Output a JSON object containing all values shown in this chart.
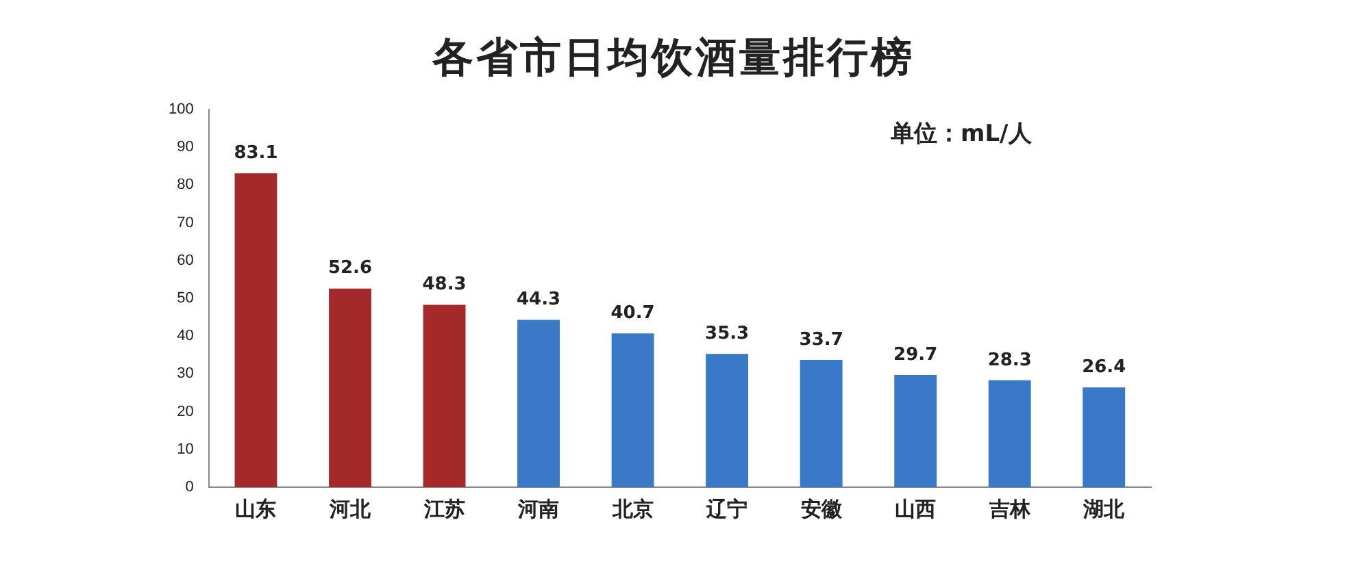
{
  "chart_data": {
    "type": "bar",
    "title": "各省市日均饮酒量排行榜",
    "annotations": [
      "单位：mL/人"
    ],
    "categories": [
      "山东",
      "河北",
      "江苏",
      "河南",
      "北京",
      "辽宁",
      "安徽",
      "山西",
      "吉林",
      "湖北"
    ],
    "values": [
      83.1,
      52.6,
      48.3,
      44.3,
      40.7,
      35.3,
      33.7,
      29.7,
      28.3,
      26.4
    ],
    "colors": [
      "#a3292b",
      "#a3292b",
      "#a3292b",
      "#3a78c8",
      "#3a78c8",
      "#3a78c8",
      "#3a78c8",
      "#3a78c8",
      "#3a78c8",
      "#3a78c8"
    ],
    "ylim": [
      0,
      100
    ],
    "yticks": [
      0,
      10,
      20,
      30,
      40,
      50,
      60,
      70,
      80,
      90,
      100
    ],
    "data_labels": true,
    "grid": false,
    "legend": false
  }
}
